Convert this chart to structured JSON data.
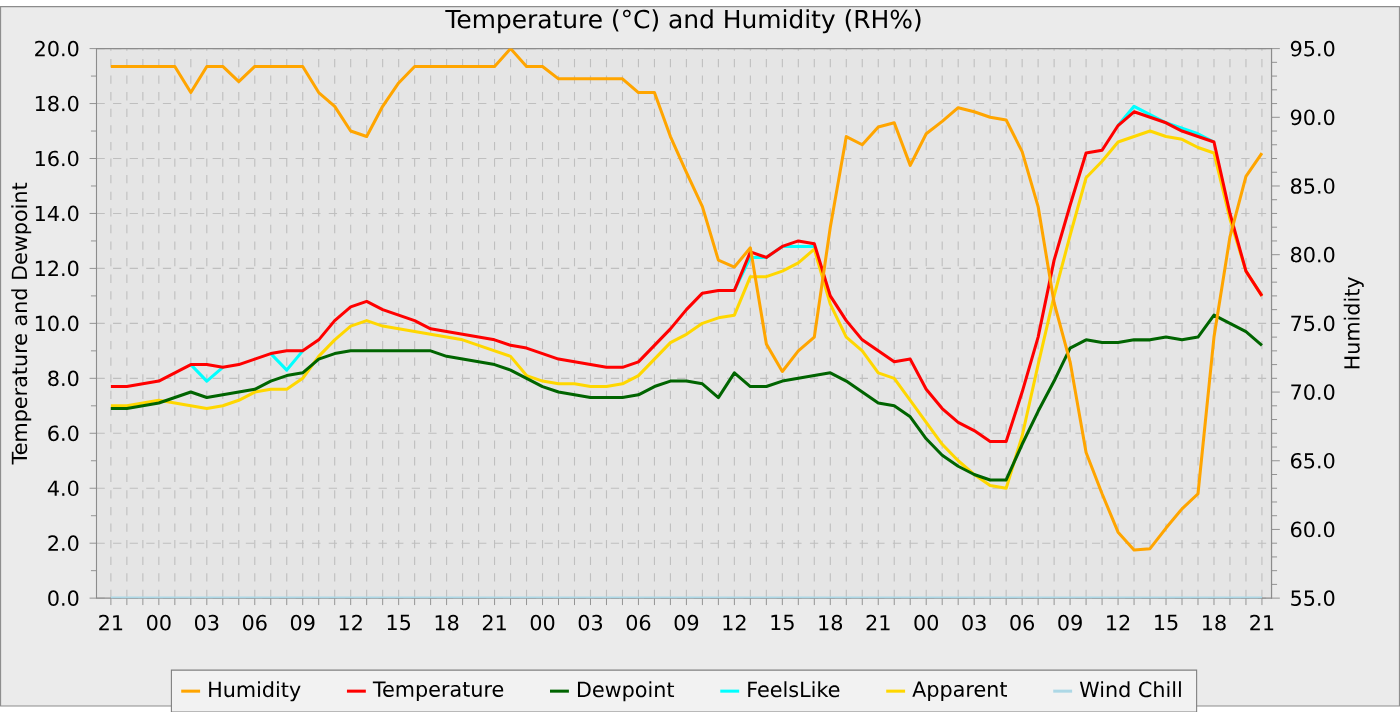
{
  "chart_data": {
    "type": "line",
    "title": "Temperature (°C) and Humidity (RH%)",
    "ylabel": "Temperature and Dewpoint",
    "y2label": "Humidity",
    "categories": [
      "21",
      null,
      null,
      "00",
      null,
      null,
      "03",
      null,
      null,
      "06",
      null,
      null,
      "09",
      null,
      null,
      "12",
      null,
      null,
      "15",
      null,
      null,
      "18",
      null,
      null,
      "21",
      null,
      null,
      "00",
      null,
      null,
      "03",
      null,
      null,
      "06",
      null,
      null,
      "09",
      null,
      null,
      "12",
      null,
      null,
      "15",
      null,
      null,
      "18",
      null,
      null,
      "21",
      null,
      null,
      "00",
      null,
      null,
      "03",
      null,
      null,
      "06",
      null,
      null,
      "09",
      null,
      null,
      "12",
      null,
      null,
      "15",
      null,
      null,
      "18",
      null,
      null,
      "21"
    ],
    "ylim": [
      0,
      20
    ],
    "yticks": [
      {
        "value": 0,
        "label": "0.0"
      },
      {
        "value": 2,
        "label": "2.0"
      },
      {
        "value": 4,
        "label": "4.0"
      },
      {
        "value": 6,
        "label": "6.0"
      },
      {
        "value": 8,
        "label": "8.0"
      },
      {
        "value": 10,
        "label": "10.0"
      },
      {
        "value": 12,
        "label": "12.0"
      },
      {
        "value": 14,
        "label": "14.0"
      },
      {
        "value": 16,
        "label": "16.0"
      },
      {
        "value": 18,
        "label": "18.0"
      },
      {
        "value": 20,
        "label": "20.0"
      }
    ],
    "y2lim": [
      55,
      95
    ],
    "y2ticks": [
      {
        "value": 55,
        "label": "55.0"
      },
      {
        "value": 60,
        "label": "60.0"
      },
      {
        "value": 65,
        "label": "65.0"
      },
      {
        "value": 70,
        "label": "70.0"
      },
      {
        "value": 75,
        "label": "75.0"
      },
      {
        "value": 80,
        "label": "80.0"
      },
      {
        "value": 85,
        "label": "85.0"
      },
      {
        "value": 90,
        "label": "90.0"
      },
      {
        "value": 95,
        "label": "95.0"
      }
    ],
    "grid": true,
    "legend": "bottom",
    "series": [
      {
        "name": "Humidity",
        "color": "#ffa500",
        "axis": "y2",
        "values": [
          93.7,
          93.7,
          93.7,
          93.7,
          93.7,
          91.8,
          93.7,
          93.7,
          92.6,
          93.7,
          93.7,
          93.7,
          93.7,
          91.8,
          90.8,
          89.0,
          88.6,
          90.8,
          92.5,
          93.7,
          93.7,
          93.7,
          93.7,
          93.7,
          93.7,
          95.0,
          93.7,
          93.7,
          92.8,
          92.8,
          92.8,
          92.8,
          92.8,
          91.8,
          91.8,
          88.6,
          86.0,
          83.5,
          79.6,
          79.1,
          80.5,
          73.5,
          71.5,
          73.0,
          74.0,
          82.0,
          88.6,
          88.0,
          89.3,
          89.6,
          86.5,
          88.8,
          89.7,
          90.7,
          90.4,
          90.0,
          89.8,
          87.5,
          83.5,
          76.5,
          72.2,
          65.6,
          62.6,
          59.8,
          58.5,
          58.6,
          60.1,
          61.5,
          62.6,
          74.0,
          81.3,
          85.7,
          87.4
        ]
      },
      {
        "name": "Temperature",
        "color": "#ff0000",
        "values": [
          7.7,
          7.7,
          7.8,
          7.9,
          8.2,
          8.5,
          8.5,
          8.4,
          8.5,
          8.7,
          8.9,
          9.0,
          9.0,
          9.4,
          10.1,
          10.6,
          10.8,
          10.5,
          10.3,
          10.1,
          9.8,
          9.7,
          9.6,
          9.5,
          9.4,
          9.2,
          9.1,
          8.9,
          8.7,
          8.6,
          8.5,
          8.4,
          8.4,
          8.6,
          9.2,
          9.8,
          10.5,
          11.1,
          11.2,
          11.2,
          12.6,
          12.4,
          12.8,
          13.0,
          12.9,
          11.0,
          10.1,
          9.4,
          9.0,
          8.6,
          8.7,
          7.6,
          6.9,
          6.4,
          6.1,
          5.7,
          5.7,
          7.5,
          9.5,
          12.3,
          14.3,
          16.2,
          16.3,
          17.2,
          17.7,
          17.5,
          17.3,
          17.0,
          16.8,
          16.6,
          14.0,
          11.9,
          11.0
        ]
      },
      {
        "name": "Dewpoint",
        "color": "#006400",
        "values": [
          6.9,
          6.9,
          7.0,
          7.1,
          7.3,
          7.5,
          7.3,
          7.4,
          7.5,
          7.6,
          7.9,
          8.1,
          8.2,
          8.7,
          8.9,
          9.0,
          9.0,
          9.0,
          9.0,
          9.0,
          9.0,
          8.8,
          8.7,
          8.6,
          8.5,
          8.3,
          8.0,
          7.7,
          7.5,
          7.4,
          7.3,
          7.3,
          7.3,
          7.4,
          7.7,
          7.9,
          7.9,
          7.8,
          7.3,
          8.2,
          7.7,
          7.7,
          7.9,
          8.0,
          8.1,
          8.2,
          7.9,
          7.5,
          7.1,
          7.0,
          6.6,
          5.8,
          5.2,
          4.8,
          4.5,
          4.3,
          4.3,
          5.6,
          6.8,
          7.9,
          9.1,
          9.4,
          9.3,
          9.3,
          9.4,
          9.4,
          9.5,
          9.4,
          9.5,
          10.3,
          10.0,
          9.7,
          9.2
        ]
      },
      {
        "name": "FeelsLike",
        "color": "#00ffff",
        "values": [
          null,
          null,
          null,
          null,
          null,
          8.5,
          7.9,
          8.4,
          null,
          null,
          8.9,
          8.3,
          9.0,
          null,
          null,
          null,
          null,
          null,
          null,
          null,
          null,
          null,
          null,
          null,
          null,
          null,
          null,
          null,
          null,
          null,
          null,
          null,
          null,
          null,
          null,
          null,
          null,
          null,
          null,
          11.2,
          12.4,
          12.4,
          12.8,
          12.8,
          12.8,
          null,
          null,
          null,
          null,
          null,
          null,
          null,
          null,
          null,
          null,
          null,
          null,
          null,
          null,
          null,
          null,
          null,
          null,
          17.2,
          17.9,
          17.6,
          17.3,
          17.1,
          16.9,
          16.6,
          null,
          null,
          null
        ]
      },
      {
        "name": "Apparent",
        "color": "#ffd700",
        "values": [
          7.0,
          7.0,
          7.1,
          7.2,
          7.1,
          7.0,
          6.9,
          7.0,
          7.2,
          7.5,
          7.6,
          7.6,
          8.0,
          8.8,
          9.4,
          9.9,
          10.1,
          9.9,
          9.8,
          9.7,
          9.6,
          9.5,
          9.4,
          9.2,
          9.0,
          8.8,
          8.1,
          7.9,
          7.8,
          7.8,
          7.7,
          7.7,
          7.8,
          8.1,
          8.7,
          9.3,
          9.6,
          10.0,
          10.2,
          10.3,
          11.7,
          11.7,
          11.9,
          12.2,
          12.7,
          10.7,
          9.5,
          9.0,
          8.2,
          8.0,
          7.2,
          6.4,
          5.6,
          5.0,
          4.5,
          4.1,
          4.0,
          5.9,
          8.5,
          11.0,
          13.2,
          15.3,
          15.9,
          16.6,
          16.8,
          17.0,
          16.8,
          16.7,
          16.4,
          16.2,
          13.8,
          11.9,
          11.0
        ]
      },
      {
        "name": "Wind Chill",
        "color": "#add8e6",
        "values": [
          0,
          0,
          0,
          0,
          0,
          0,
          0,
          0,
          0,
          0,
          0,
          0,
          0,
          0,
          0,
          0,
          0,
          0,
          0,
          0,
          0,
          0,
          0,
          0,
          0,
          0,
          0,
          0,
          0,
          0,
          0,
          0,
          0,
          0,
          0,
          0,
          0,
          0,
          0,
          0,
          0,
          0,
          0,
          0,
          0,
          0,
          0,
          0,
          0,
          0,
          0,
          0,
          0,
          0,
          0,
          0,
          0,
          0,
          0,
          0,
          0,
          0,
          0,
          0,
          0,
          0,
          0,
          0,
          0,
          0,
          0,
          0,
          0
        ]
      }
    ]
  }
}
